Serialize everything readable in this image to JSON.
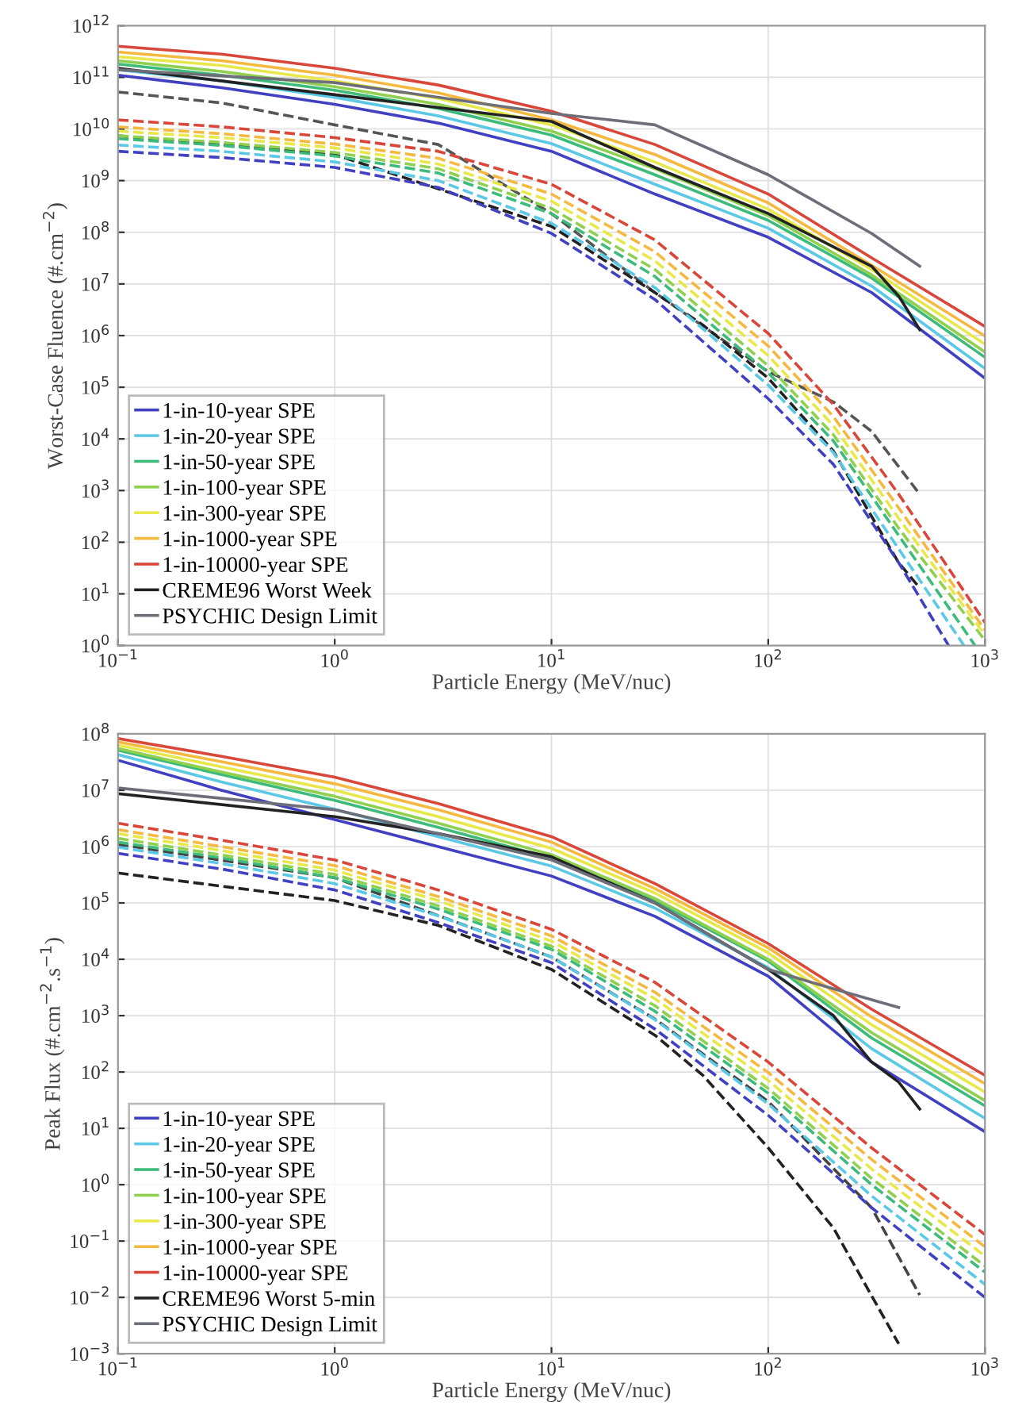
{
  "chart_data": [
    {
      "type": "line",
      "xlabel": "Particle Energy (MeV/nuc)",
      "ylabel": "Worst-Case Fluence (#.cm$^{−2}$)",
      "log": "xy",
      "grid": true,
      "legend": "bottom left",
      "xlim": [
        0.1,
        1000
      ],
      "ylim": [
        1,
        1000000000000.0
      ],
      "xticks": [
        {
          "value": 0.1,
          "label": "10$^{−1}$"
        },
        {
          "value": 1,
          "label": "10$^{0}$"
        },
        {
          "value": 10,
          "label": "10$^{1}$"
        },
        {
          "value": 100,
          "label": "10$^{2}$"
        },
        {
          "value": 1000,
          "label": "10$^{3}$"
        }
      ],
      "yticks": [
        {
          "value": 1,
          "label": "10$^{0}$"
        },
        {
          "value": 10,
          "label": "10$^{1}$"
        },
        {
          "value": 100,
          "label": "10$^{2}$"
        },
        {
          "value": 1000,
          "label": "10$^{3}$"
        },
        {
          "value": 10000.0,
          "label": "10$^{4}$"
        },
        {
          "value": 100000.0,
          "label": "10$^{5}$"
        },
        {
          "value": 1000000.0,
          "label": "10$^{6}$"
        },
        {
          "value": 10000000.0,
          "label": "10$^{7}$"
        },
        {
          "value": 100000000.0,
          "label": "10$^{8}$"
        },
        {
          "value": 1000000000.0,
          "label": "10$^{9}$"
        },
        {
          "value": 10000000000.0,
          "label": "10$^{10}$"
        },
        {
          "value": 100000000000.0,
          "label": "10$^{11}$"
        },
        {
          "value": 1000000000000.0,
          "label": "10$^{12}$"
        }
      ],
      "series": [
        {
          "type": "line",
          "line_style": "dashed",
          "color": "#555555",
          "x": [
            0.1,
            0.3,
            1,
            3,
            10,
            30,
            100,
            200,
            300,
            500
          ],
          "values": [
            52000000000.0,
            32000000000.0,
            12000000000.0,
            5000000000.0,
            230000000.0,
            6800000.0,
            200000.0,
            52000.0,
            14000.0,
            850
          ]
        },
        {
          "type": "line",
          "line_style": "dashed",
          "color": "#222222",
          "x": [
            0.1,
            1,
            10,
            30,
            50,
            100,
            200,
            400,
            500
          ],
          "values": [
            7400000000.0,
            3200000000.0,
            130000000.0,
            6800000.0,
            1600000.0,
            150000.0,
            5800.0,
            40,
            13
          ]
        },
        {
          "type": "line",
          "line_style": "dashed",
          "color": "#4040c0",
          "x": [
            0.1,
            0.3,
            1,
            3,
            10,
            30,
            100,
            200,
            400,
            680
          ],
          "values": [
            3700000000.0,
            2800000000.0,
            1800000000.0,
            740000000.0,
            95000000.0,
            5000000.0,
            60000.0,
            3200.0,
            40,
            1
          ]
        },
        {
          "type": "line",
          "line_style": "dashed",
          "color": "#5bc8e6",
          "x": [
            0.1,
            0.3,
            1,
            3,
            10,
            30,
            100,
            200,
            400,
            800
          ],
          "values": [
            4900000000.0,
            3700000000.0,
            2300000000.0,
            1000000000.0,
            150000000.0,
            8500000.0,
            110000.0,
            5400.0,
            74,
            1
          ]
        },
        {
          "type": "line",
          "line_style": "dashed",
          "color": "#3dbb7a",
          "x": [
            0.1,
            0.3,
            1,
            3,
            10,
            30,
            100,
            200,
            400,
            900
          ],
          "values": [
            6500000000.0,
            4800000000.0,
            3000000000.0,
            1400000000.0,
            230000000.0,
            14000000.0,
            190000.0,
            9100.0,
            135,
            1
          ]
        },
        {
          "type": "line",
          "line_style": "dashed",
          "color": "#8fd14f",
          "x": [
            0.1,
            0.3,
            1,
            3,
            10,
            30,
            100,
            200,
            400,
            1000
          ],
          "values": [
            7400000000.0,
            5500000000.0,
            3500000000.0,
            1700000000.0,
            290000000.0,
            19000000.0,
            260000.0,
            12000.0,
            186,
            1.26
          ]
        },
        {
          "type": "line",
          "line_style": "dashed",
          "color": "#e8e84a",
          "x": [
            0.1,
            0.3,
            1,
            3,
            10,
            30,
            100,
            200,
            400,
            1000
          ],
          "values": [
            9100000000.0,
            6800000000.0,
            4300000000.0,
            2100000000.0,
            400000000.0,
            28000000.0,
            410000.0,
            18000.0,
            290,
            1.6
          ]
        },
        {
          "type": "line",
          "line_style": "dashed",
          "color": "#f5b942",
          "x": [
            0.1,
            0.3,
            1,
            3,
            10,
            30,
            100,
            200,
            400,
            1000
          ],
          "values": [
            11000000000.0,
            8100000000.0,
            5100000000.0,
            2700000000.0,
            550000000.0,
            42000000.0,
            630000.0,
            27000.0,
            460,
            2
          ]
        },
        {
          "type": "line",
          "line_style": "dashed",
          "color": "#d9463a",
          "x": [
            0.1,
            0.3,
            1,
            3,
            10,
            30,
            100,
            200,
            400,
            1000
          ],
          "values": [
            15000000000.0,
            11000000000.0,
            6800000000.0,
            3700000000.0,
            850000000.0,
            71000000.0,
            1100000.0,
            46000.0,
            850,
            2.8
          ]
        },
        {
          "type": "line",
          "line_style": "solid",
          "name": "1-in-10-year SPE",
          "color": "#4040c0",
          "x": [
            0.1,
            0.3,
            1,
            3,
            10,
            30,
            100,
            300,
            1000
          ],
          "values": [
            110000000000.0,
            63000000000.0,
            30000000000.0,
            13000000000.0,
            3700000000.0,
            550000000.0,
            80000000.0,
            6800000.0,
            150000.0
          ]
        },
        {
          "type": "line",
          "line_style": "solid",
          "name": "1-in-20-year SPE",
          "color": "#5bc8e6",
          "x": [
            0.1,
            0.3,
            1,
            3,
            10,
            30,
            100,
            300,
            1000
          ],
          "values": [
            140000000000.0,
            85000000000.0,
            41000000000.0,
            18000000000.0,
            5200000000.0,
            850000000.0,
            120000000.0,
            9100000.0,
            230000.0
          ]
        },
        {
          "type": "line",
          "line_style": "solid",
          "name": "1-in-50-year SPE",
          "color": "#3dbb7a",
          "x": [
            0.1,
            0.3,
            1,
            3,
            10,
            30,
            100,
            300,
            1000
          ],
          "values": [
            180000000000.0,
            110000000000.0,
            56000000000.0,
            25000000000.0,
            7600000000.0,
            1300000000.0,
            170000000.0,
            13000000.0,
            380000.0
          ]
        },
        {
          "type": "line",
          "line_style": "solid",
          "name": "1-in-100-year SPE",
          "color": "#8fd14f",
          "x": [
            0.1,
            0.3,
            1,
            3,
            10,
            30,
            100,
            300,
            1000
          ],
          "values": [
            210000000000.0,
            130000000000.0,
            66000000000.0,
            30000000000.0,
            9100000000.0,
            1700000000.0,
            210000000.0,
            15000000.0,
            480000.0
          ]
        },
        {
          "type": "line",
          "line_style": "solid",
          "name": "1-in-300-year SPE",
          "color": "#e8e84a",
          "x": [
            0.1,
            0.3,
            1,
            3,
            10,
            30,
            100,
            300,
            1000
          ],
          "values": [
            250000000000.0,
            170000000000.0,
            85000000000.0,
            39000000000.0,
            12000000000.0,
            2300000000.0,
            280000000.0,
            19000000.0,
            680000.0
          ]
        },
        {
          "type": "line",
          "line_style": "solid",
          "name": "1-in-1000-year SPE",
          "color": "#f5b942",
          "x": [
            0.1,
            0.3,
            1,
            3,
            10,
            30,
            100,
            300,
            1000
          ],
          "values": [
            310000000000.0,
            210000000000.0,
            110000000000.0,
            50000000000.0,
            15000000000.0,
            3200000000.0,
            370000000.0,
            23000000.0,
            980000.0
          ]
        },
        {
          "type": "line",
          "line_style": "solid",
          "name": "1-in-10000-year SPE",
          "color": "#d9463a",
          "x": [
            0.1,
            0.3,
            1,
            3,
            10,
            30,
            100,
            300,
            1000
          ],
          "values": [
            400000000000.0,
            280000000000.0,
            150000000000.0,
            71000000000.0,
            22000000000.0,
            5000000000.0,
            550000000.0,
            32000000.0,
            1500000.0
          ]
        },
        {
          "type": "line",
          "line_style": "solid",
          "name": "CREME96 Worst Week",
          "color": "#222222",
          "x": [
            0.1,
            1,
            10,
            30,
            100,
            300,
            400,
            500
          ],
          "values": [
            150000000000.0,
            46000000000.0,
            14000000000.0,
            1800000000.0,
            230000000.0,
            22000000.0,
            5800000.0,
            1300000.0
          ]
        },
        {
          "type": "line",
          "line_style": "solid",
          "name": "PSYCHIC Design Limit",
          "color": "#6e6e78",
          "x": [
            0.1,
            1,
            10,
            30,
            100,
            300,
            500
          ],
          "values": [
            140000000000.0,
            79000000000.0,
            20000000000.0,
            12000000000.0,
            1300000000.0,
            95000000.0,
            22000000.0
          ]
        }
      ]
    },
    {
      "type": "line",
      "xlabel": "Particle Energy (MeV/nuc)",
      "ylabel": "Peak Flux (#.cm$^{−2}$.s$^{−1}$)",
      "log": "xy",
      "grid": true,
      "legend": "bottom left",
      "xlim": [
        0.1,
        1000
      ],
      "ylim": [
        0.001,
        100000000.0
      ],
      "xticks": [
        {
          "value": 0.1,
          "label": "10$^{−1}$"
        },
        {
          "value": 1,
          "label": "10$^{0}$"
        },
        {
          "value": 10,
          "label": "10$^{1}$"
        },
        {
          "value": 100,
          "label": "10$^{2}$"
        },
        {
          "value": 1000,
          "label": "10$^{3}$"
        }
      ],
      "yticks": [
        {
          "value": 0.001,
          "label": "10$^{−3}$"
        },
        {
          "value": 0.01,
          "label": "10$^{−2}$"
        },
        {
          "value": 0.1,
          "label": "10$^{−1}$"
        },
        {
          "value": 1,
          "label": "10$^{0}$"
        },
        {
          "value": 10,
          "label": "10$^{1}$"
        },
        {
          "value": 100,
          "label": "10$^{2}$"
        },
        {
          "value": 1000,
          "label": "10$^{3}$"
        },
        {
          "value": 10000.0,
          "label": "10$^{4}$"
        },
        {
          "value": 100000.0,
          "label": "10$^{5}$"
        },
        {
          "value": 1000000.0,
          "label": "10$^{6}$"
        },
        {
          "value": 10000000.0,
          "label": "10$^{7}$"
        },
        {
          "value": 100000000.0,
          "label": "10$^{8}$"
        }
      ],
      "series": [
        {
          "type": "line",
          "line_style": "dashed",
          "color": "#222222",
          "x": [
            0.1,
            1,
            3,
            10,
            30,
            50,
            100,
            200,
            400
          ],
          "values": [
            340000.0,
            110000.0,
            40000.0,
            6600.0,
            450,
            87,
            4.5,
            0.17,
            0.0015
          ]
        },
        {
          "type": "line",
          "line_style": "dashed",
          "color": "#444444",
          "x": [
            0.1,
            1,
            10,
            30,
            100,
            300,
            500
          ],
          "values": [
            1100000.0,
            280000.0,
            11000.0,
            870,
            30,
            0.39,
            0.011
          ]
        },
        {
          "type": "line",
          "line_style": "dashed",
          "color": "#4040c0",
          "x": [
            0.1,
            0.3,
            1,
            3,
            10,
            30,
            100,
            300,
            1000
          ],
          "values": [
            760000.0,
            400000.0,
            170000.0,
            45000.0,
            8700.0,
            580,
            17,
            0.39,
            0.01
          ]
        },
        {
          "type": "line",
          "line_style": "dashed",
          "color": "#5bc8e6",
          "x": [
            0.1,
            0.3,
            1,
            3,
            10,
            30,
            100,
            300,
            1000
          ],
          "values": [
            980000.0,
            500000.0,
            220000.0,
            59000.0,
            11000.0,
            850,
            27,
            0.63,
            0.017
          ]
        },
        {
          "type": "line",
          "line_style": "dashed",
          "color": "#3dbb7a",
          "x": [
            0.1,
            0.3,
            1,
            3,
            10,
            30,
            100,
            300,
            1000
          ],
          "values": [
            1200000.0,
            630000.0,
            280000.0,
            78000.0,
            15000.0,
            1200.0,
            42,
            1,
            0.028
          ]
        },
        {
          "type": "line",
          "line_style": "dashed",
          "color": "#8fd14f",
          "x": [
            0.1,
            0.3,
            1,
            3,
            10,
            30,
            100,
            300,
            1000
          ],
          "values": [
            1400000.0,
            710000.0,
            320000.0,
            89000.0,
            17000.0,
            1500.0,
            51,
            1.3,
            0.036
          ]
        },
        {
          "type": "line",
          "line_style": "dashed",
          "color": "#e8e84a",
          "x": [
            0.1,
            0.3,
            1,
            3,
            10,
            30,
            100,
            300,
            1000
          ],
          "values": [
            1700000.0,
            850000.0,
            380000.0,
            110000.0,
            21000.0,
            2000.0,
            71,
            1.9,
            0.054
          ]
        },
        {
          "type": "line",
          "line_style": "dashed",
          "color": "#f5b942",
          "x": [
            0.1,
            0.3,
            1,
            3,
            10,
            30,
            100,
            300,
            1000
          ],
          "values": [
            2000000.0,
            1000000.0,
            460000.0,
            130000.0,
            26000.0,
            2600.0,
            98,
            2.8,
            0.079
          ]
        },
        {
          "type": "line",
          "line_style": "dashed",
          "color": "#d9463a",
          "x": [
            0.1,
            0.3,
            1,
            3,
            10,
            30,
            100,
            300,
            1000
          ],
          "values": [
            2600000.0,
            1300000.0,
            580000.0,
            170000.0,
            34000.0,
            3900.0,
            150,
            4.5,
            0.13
          ]
        },
        {
          "type": "line",
          "line_style": "solid",
          "name": "1-in-10-year SPE",
          "color": "#4040c0",
          "x": [
            0.1,
            0.3,
            1,
            3,
            10,
            30,
            100,
            300,
            1000
          ],
          "values": [
            34000000.0,
            10000000.0,
            3000000.0,
            1000000.0,
            300000.0,
            58000.0,
            5000.0,
            150,
            8.7
          ]
        },
        {
          "type": "line",
          "line_style": "solid",
          "name": "1-in-20-year SPE",
          "color": "#5bc8e6",
          "x": [
            0.1,
            0.3,
            1,
            3,
            10,
            30,
            100,
            300,
            1000
          ],
          "values": [
            43000000.0,
            14000000.0,
            4600000.0,
            1500000.0,
            450000.0,
            81000.0,
            7100.0,
            260,
            15
          ]
        },
        {
          "type": "line",
          "line_style": "solid",
          "name": "1-in-50-year SPE",
          "color": "#3dbb7a",
          "x": [
            0.1,
            0.3,
            1,
            3,
            10,
            30,
            100,
            300,
            1000
          ],
          "values": [
            51000000.0,
            19000000.0,
            6600000.0,
            2200000.0,
            620000.0,
            110000.0,
            9300.0,
            400,
            25
          ]
        },
        {
          "type": "line",
          "line_style": "solid",
          "name": "1-in-100-year SPE",
          "color": "#8fd14f",
          "x": [
            0.1,
            0.3,
            1,
            3,
            10,
            30,
            100,
            300,
            1000
          ],
          "values": [
            55000000.0,
            21000000.0,
            7800000.0,
            2600000.0,
            720000.0,
            120000.0,
            10000.0,
            500,
            31
          ]
        },
        {
          "type": "line",
          "line_style": "solid",
          "name": "1-in-300-year SPE",
          "color": "#e8e84a",
          "x": [
            0.1,
            0.3,
            1,
            3,
            10,
            30,
            100,
            300,
            1000
          ],
          "values": [
            63000000.0,
            26000000.0,
            10000000.0,
            3400000.0,
            930000.0,
            150000.0,
            13000.0,
            690,
            44
          ]
        },
        {
          "type": "line",
          "line_style": "solid",
          "name": "1-in-1000-year SPE",
          "color": "#f5b942",
          "x": [
            0.1,
            0.3,
            1,
            3,
            10,
            30,
            100,
            300,
            1000
          ],
          "values": [
            72000000.0,
            32000000.0,
            13000000.0,
            4500000.0,
            1200000.0,
            180000.0,
            16000.0,
            950,
            62
          ]
        },
        {
          "type": "line",
          "line_style": "solid",
          "name": "1-in-10000-year SPE",
          "color": "#d9463a",
          "x": [
            0.1,
            0.3,
            1,
            3,
            10,
            30,
            100,
            300,
            1000
          ],
          "values": [
            83000000.0,
            40000000.0,
            17000000.0,
            5800000.0,
            1500000.0,
            220000.0,
            19000.0,
            1300.0,
            87
          ]
        },
        {
          "type": "line",
          "line_style": "solid",
          "name": "CREME96 Worst 5-min",
          "color": "#222222",
          "x": [
            0.1,
            1,
            3,
            10,
            30,
            100,
            200,
            300,
            400,
            500
          ],
          "values": [
            8700000.0,
            3400000.0,
            1700000.0,
            660000.0,
            100000.0,
            6600.0,
            1000.0,
            150,
            66,
            22
          ]
        },
        {
          "type": "line",
          "line_style": "solid",
          "name": "PSYCHIC Design Limit",
          "color": "#6e6e78",
          "x": [
            0.1,
            1,
            10,
            30,
            100,
            200,
            400
          ],
          "values": [
            11000000.0,
            4500000.0,
            580000.0,
            100000.0,
            6600.0,
            3000.0,
            1400.0
          ]
        }
      ]
    }
  ]
}
